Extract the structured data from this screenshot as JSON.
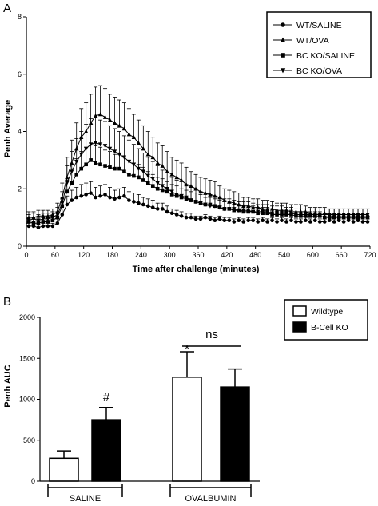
{
  "chart_data": [
    {
      "panel": "A",
      "type": "line",
      "xlabel": "Time after challenge (minutes)",
      "ylabel": "Penh Average",
      "xlim": [
        0,
        720
      ],
      "ylim": [
        0,
        8
      ],
      "xticks": [
        0,
        60,
        120,
        180,
        240,
        300,
        360,
        420,
        480,
        540,
        600,
        660,
        720
      ],
      "yticks": [
        0,
        2,
        4,
        6,
        8
      ],
      "legend_position": "top-right",
      "x": [
        5,
        15,
        25,
        35,
        45,
        55,
        65,
        75,
        85,
        95,
        105,
        115,
        125,
        135,
        145,
        155,
        165,
        175,
        185,
        195,
        205,
        215,
        225,
        235,
        245,
        255,
        265,
        275,
        285,
        295,
        305,
        315,
        325,
        335,
        345,
        355,
        365,
        375,
        385,
        395,
        405,
        415,
        425,
        435,
        445,
        455,
        465,
        475,
        485,
        495,
        505,
        515,
        525,
        535,
        545,
        555,
        565,
        575,
        585,
        595,
        605,
        615,
        625,
        635,
        645,
        655,
        665,
        675,
        685,
        695,
        705,
        715
      ],
      "series": [
        {
          "name": "WT/SALINE",
          "marker": "circle",
          "values": [
            0.7,
            0.7,
            0.65,
            0.7,
            0.7,
            0.7,
            0.8,
            1.1,
            1.45,
            1.6,
            1.7,
            1.75,
            1.8,
            1.85,
            1.7,
            1.75,
            1.8,
            1.7,
            1.65,
            1.7,
            1.75,
            1.6,
            1.55,
            1.5,
            1.45,
            1.4,
            1.35,
            1.3,
            1.3,
            1.2,
            1.15,
            1.1,
            1.05,
            1.0,
            1.0,
            0.95,
            0.95,
            1.0,
            0.95,
            0.9,
            0.95,
            0.9,
            0.9,
            0.85,
            0.9,
            0.85,
            0.9,
            0.9,
            0.85,
            0.9,
            0.85,
            0.9,
            0.85,
            0.9,
            0.85,
            0.9,
            0.85,
            0.85,
            0.9,
            0.85,
            0.9,
            0.85,
            0.85,
            0.9,
            0.85,
            0.9,
            0.85,
            0.9,
            0.85,
            0.9,
            0.85,
            0.85
          ],
          "errors": [
            0.1,
            0.1,
            0.1,
            0.1,
            0.1,
            0.1,
            0.15,
            0.2,
            0.3,
            0.35,
            0.35,
            0.4,
            0.4,
            0.4,
            0.35,
            0.35,
            0.35,
            0.35,
            0.3,
            0.3,
            0.3,
            0.3,
            0.3,
            0.3,
            0.25,
            0.25,
            0.25,
            0.2,
            0.2,
            0.2,
            0.15,
            0.15,
            0.15,
            0.15,
            0.15,
            0.1,
            0.1,
            0.1,
            0.1,
            0.1,
            0.1,
            0.1,
            0.1,
            0.1,
            0.1,
            0.1,
            0.1,
            0.1,
            0.1,
            0.1,
            0.1,
            0.1,
            0.1,
            0.1,
            0.1,
            0.1,
            0.1,
            0.1,
            0.1,
            0.1,
            0.1,
            0.1,
            0.1,
            0.1,
            0.1,
            0.1,
            0.1,
            0.1,
            0.1,
            0.1,
            0.1,
            0.1
          ]
        },
        {
          "name": "WT/OVA",
          "marker": "triangle-up",
          "values": [
            1.0,
            1.0,
            1.05,
            1.05,
            1.05,
            1.1,
            1.2,
            1.7,
            2.4,
            2.9,
            3.4,
            3.8,
            4.0,
            4.3,
            4.55,
            4.6,
            4.5,
            4.4,
            4.3,
            4.2,
            4.1,
            3.9,
            3.8,
            3.6,
            3.4,
            3.2,
            3.1,
            2.9,
            2.8,
            2.6,
            2.5,
            2.4,
            2.3,
            2.15,
            2.1,
            2.0,
            1.9,
            1.85,
            1.8,
            1.75,
            1.7,
            1.6,
            1.55,
            1.5,
            1.45,
            1.4,
            1.4,
            1.35,
            1.35,
            1.3,
            1.3,
            1.3,
            1.25,
            1.25,
            1.25,
            1.2,
            1.2,
            1.2,
            1.2,
            1.15,
            1.15,
            1.15,
            1.15,
            1.1,
            1.1,
            1.1,
            1.1,
            1.1,
            1.1,
            1.1,
            1.1,
            1.1
          ],
          "errors": [
            0.2,
            0.2,
            0.2,
            0.2,
            0.2,
            0.2,
            0.3,
            0.5,
            0.7,
            0.8,
            0.9,
            1.0,
            1.0,
            1.0,
            1.0,
            1.0,
            1.0,
            0.9,
            0.9,
            0.9,
            0.9,
            0.9,
            0.8,
            0.8,
            0.8,
            0.8,
            0.7,
            0.7,
            0.7,
            0.7,
            0.6,
            0.6,
            0.6,
            0.6,
            0.5,
            0.5,
            0.5,
            0.5,
            0.5,
            0.5,
            0.4,
            0.4,
            0.4,
            0.4,
            0.4,
            0.3,
            0.3,
            0.3,
            0.3,
            0.3,
            0.3,
            0.25,
            0.25,
            0.25,
            0.25,
            0.25,
            0.25,
            0.25,
            0.2,
            0.2,
            0.2,
            0.2,
            0.2,
            0.2,
            0.2,
            0.2,
            0.2,
            0.2,
            0.2,
            0.2,
            0.2,
            0.2
          ]
        },
        {
          "name": "BC KO/SALINE",
          "marker": "square",
          "values": [
            0.85,
            0.8,
            0.8,
            0.85,
            0.85,
            0.9,
            1.0,
            1.4,
            1.9,
            2.2,
            2.5,
            2.7,
            2.85,
            3.0,
            2.9,
            2.85,
            2.8,
            2.75,
            2.7,
            2.7,
            2.6,
            2.5,
            2.45,
            2.4,
            2.3,
            2.2,
            2.1,
            2.0,
            1.95,
            1.9,
            1.8,
            1.75,
            1.7,
            1.65,
            1.6,
            1.55,
            1.5,
            1.45,
            1.45,
            1.4,
            1.35,
            1.3,
            1.3,
            1.25,
            1.25,
            1.2,
            1.2,
            1.2,
            1.15,
            1.15,
            1.15,
            1.1,
            1.1,
            1.1,
            1.1,
            1.1,
            1.05,
            1.05,
            1.05,
            1.05,
            1.05,
            1.05,
            1.0,
            1.0,
            1.0,
            1.0,
            1.0,
            1.0,
            1.0,
            1.0,
            1.0,
            1.0
          ],
          "errors": [
            0.15,
            0.15,
            0.15,
            0.15,
            0.15,
            0.15,
            0.2,
            0.3,
            0.4,
            0.5,
            0.55,
            0.6,
            0.6,
            0.6,
            0.6,
            0.6,
            0.55,
            0.55,
            0.5,
            0.5,
            0.5,
            0.5,
            0.45,
            0.45,
            0.45,
            0.4,
            0.4,
            0.4,
            0.4,
            0.35,
            0.35,
            0.35,
            0.3,
            0.3,
            0.3,
            0.3,
            0.3,
            0.25,
            0.25,
            0.25,
            0.25,
            0.25,
            0.2,
            0.2,
            0.2,
            0.2,
            0.2,
            0.2,
            0.2,
            0.2,
            0.2,
            0.2,
            0.15,
            0.15,
            0.15,
            0.15,
            0.15,
            0.15,
            0.15,
            0.15,
            0.15,
            0.15,
            0.15,
            0.15,
            0.15,
            0.15,
            0.15,
            0.15,
            0.15,
            0.15,
            0.15,
            0.15
          ]
        },
        {
          "name": "BC KO/OVA",
          "marker": "triangle-down",
          "values": [
            0.9,
            0.95,
            0.9,
            0.95,
            0.95,
            1.0,
            1.1,
            1.5,
            2.2,
            2.6,
            2.95,
            3.2,
            3.4,
            3.55,
            3.6,
            3.55,
            3.5,
            3.4,
            3.3,
            3.2,
            3.1,
            2.95,
            2.85,
            2.7,
            2.6,
            2.45,
            2.35,
            2.2,
            2.1,
            2.0,
            1.9,
            1.8,
            1.75,
            1.7,
            1.6,
            1.55,
            1.5,
            1.45,
            1.4,
            1.4,
            1.35,
            1.3,
            1.3,
            1.3,
            1.25,
            1.25,
            1.25,
            1.2,
            1.2,
            1.2,
            1.2,
            1.15,
            1.15,
            1.15,
            1.15,
            1.15,
            1.1,
            1.1,
            1.1,
            1.1,
            1.1,
            1.1,
            1.1,
            1.1,
            1.1,
            1.1,
            1.1,
            1.1,
            1.1,
            1.1,
            1.1,
            1.1
          ],
          "errors": [
            0.2,
            0.2,
            0.2,
            0.2,
            0.2,
            0.2,
            0.25,
            0.4,
            0.6,
            0.7,
            0.8,
            0.8,
            0.85,
            0.9,
            0.9,
            0.85,
            0.85,
            0.8,
            0.8,
            0.8,
            0.75,
            0.75,
            0.7,
            0.7,
            0.65,
            0.65,
            0.6,
            0.6,
            0.55,
            0.55,
            0.5,
            0.5,
            0.5,
            0.45,
            0.45,
            0.45,
            0.4,
            0.4,
            0.4,
            0.35,
            0.35,
            0.35,
            0.35,
            0.3,
            0.3,
            0.3,
            0.3,
            0.3,
            0.25,
            0.25,
            0.25,
            0.25,
            0.25,
            0.25,
            0.2,
            0.2,
            0.2,
            0.2,
            0.2,
            0.2,
            0.2,
            0.2,
            0.2,
            0.2,
            0.2,
            0.2,
            0.2,
            0.2,
            0.2,
            0.2,
            0.2,
            0.2
          ]
        }
      ]
    },
    {
      "panel": "B",
      "type": "bar",
      "ylabel": "Penh AUC",
      "ylim": [
        0,
        2000
      ],
      "yticks": [
        0,
        500,
        1000,
        1500,
        2000
      ],
      "categories": [
        "SALINE",
        "OVALBUMIN"
      ],
      "legend_position": "top-right",
      "series": [
        {
          "name": "Wildtype",
          "fill": "#ffffff",
          "values": [
            280,
            1270
          ],
          "errors": [
            90,
            310
          ]
        },
        {
          "name": "B-Cell KO",
          "fill": "#000000",
          "values": [
            750,
            1150
          ],
          "errors": [
            150,
            220
          ]
        }
      ],
      "annotations": [
        {
          "text": "#",
          "target": "SALINE / B-Cell KO"
        },
        {
          "text": "*",
          "target": "OVALBUMIN / Wildtype"
        },
        {
          "text": "ns",
          "target": "OVALBUMIN bracket"
        }
      ]
    }
  ]
}
